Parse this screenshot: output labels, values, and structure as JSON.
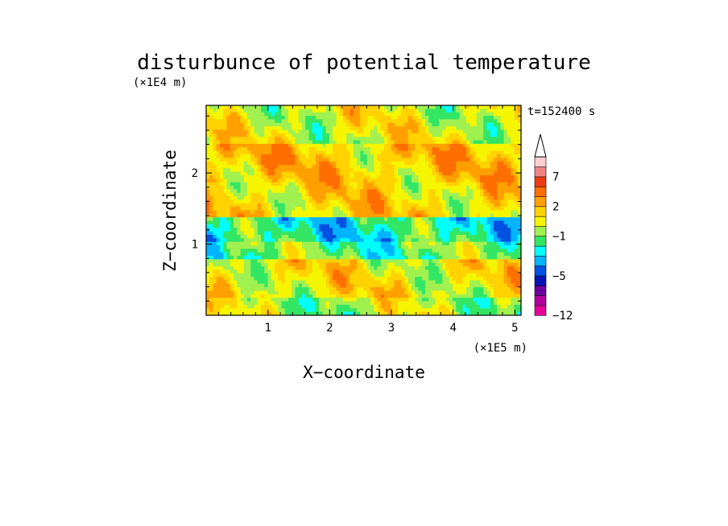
{
  "chart_data": {
    "type": "heatmap",
    "title": "disturbunce of potential temperature",
    "time_label": "t=152400 s",
    "xlabel": "X−coordinate",
    "ylabel": "Z−coordinate",
    "x_unit": "(×1E5 m)",
    "y_unit": "(×1E4 m)",
    "xlim": [
      0,
      5.1
    ],
    "ylim": [
      0,
      2.95
    ],
    "x_ticks": [
      1,
      2,
      3,
      4,
      5
    ],
    "y_ticks": [
      1,
      2
    ],
    "colorbar": {
      "tick_labels": [
        "7",
        "2",
        "−1",
        "−5",
        "−12"
      ],
      "tick_values": [
        7,
        2,
        -1,
        -5,
        -12
      ],
      "levels": [
        -12,
        -10,
        -8,
        -6,
        -5,
        -4,
        -3,
        -2,
        -1,
        0,
        1,
        2,
        3,
        5,
        7,
        9,
        11
      ],
      "colors": [
        "#e60099",
        "#b4009e",
        "#6e00a0",
        "#0a14b4",
        "#0050e1",
        "#00b4ff",
        "#00ffff",
        "#32e664",
        "#a0f050",
        "#f5f500",
        "#ffd200",
        "#ffa000",
        "#ff6e00",
        "#f03c14",
        "#f08282",
        "#ffcdcd"
      ],
      "extend": "max"
    },
    "bands": [
      {
        "z_range": [
          0.0,
          0.25
        ],
        "mean": -0.2
      },
      {
        "z_range": [
          0.25,
          0.8
        ],
        "mean": 0.8
      },
      {
        "z_range": [
          0.8,
          1.05
        ],
        "mean": -1.2
      },
      {
        "z_range": [
          1.05,
          1.4
        ],
        "mean": -2.2
      },
      {
        "z_range": [
          1.4,
          1.85
        ],
        "mean": 1.2
      },
      {
        "z_range": [
          1.85,
          2.4
        ],
        "mean": 1.6
      },
      {
        "z_range": [
          2.4,
          2.95
        ],
        "mean": 0.4
      }
    ]
  }
}
